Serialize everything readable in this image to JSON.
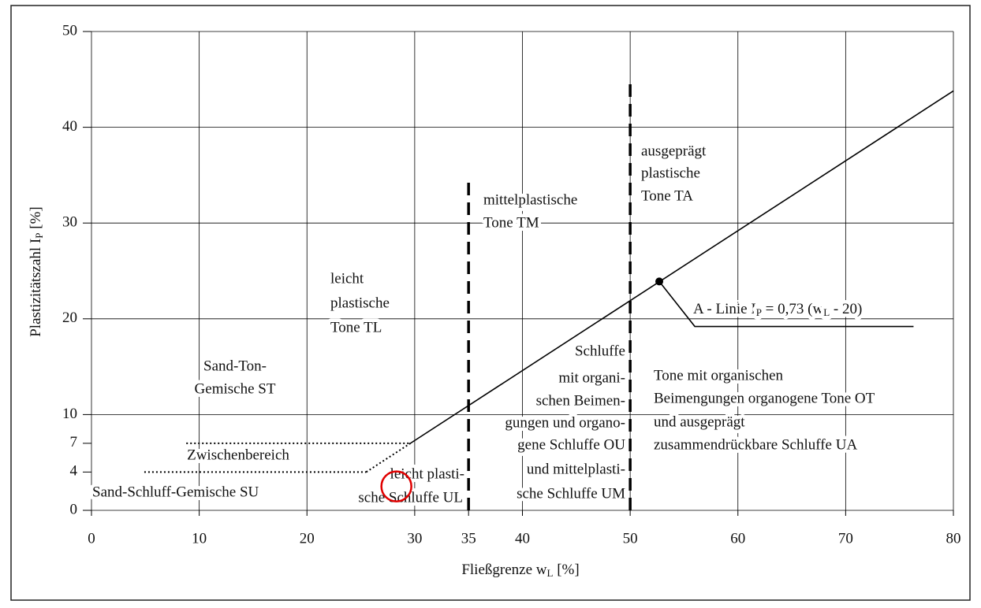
{
  "chart_data": {
    "type": "line",
    "xlabel": [
      "Fließgrenze w",
      "L",
      " [%]"
    ],
    "ylabel": [
      "Plastizitätszahl I",
      "P",
      " [%]"
    ],
    "xlim": [
      0,
      80
    ],
    "ylim": [
      0,
      50
    ],
    "xticks": [
      0,
      10,
      20,
      30,
      35,
      40,
      50,
      60,
      70,
      80
    ],
    "yticks": [
      0,
      4,
      7,
      10,
      20,
      30,
      40,
      50
    ],
    "xgrid": [
      0,
      10,
      20,
      30,
      40,
      50,
      60,
      70,
      80
    ],
    "ygrid": [
      0,
      10,
      20,
      30,
      40,
      50
    ],
    "grid_color": "#000000",
    "series": [
      {
        "x": [
          29.6,
          80
        ],
        "values": [
          7,
          43.8
        ],
        "color": "#000000",
        "style": "solid"
      },
      {
        "x": [
          25.5,
          29.6
        ],
        "values": [
          4,
          7
        ],
        "color": "#000000",
        "style": "dotted"
      },
      {
        "x": [
          8.8,
          29.6
        ],
        "values": [
          7,
          7
        ],
        "color": "#000000",
        "style": "dotted"
      },
      {
        "x": [
          4.9,
          25.5
        ],
        "values": [
          4,
          4
        ],
        "color": "#000000",
        "style": "dotted"
      },
      {
        "x": [
          35,
          35
        ],
        "values": [
          0,
          34.4
        ],
        "color": "#000000",
        "style": "dashed"
      },
      {
        "x": [
          50,
          50
        ],
        "values": [
          0,
          45.2
        ],
        "color": "#000000",
        "style": "dashed"
      },
      {
        "x": [
          52.7,
          56,
          76.3
        ],
        "values": [
          23.9,
          19.2,
          19.2
        ],
        "color": "#000000",
        "style": "solid"
      }
    ],
    "points": [
      {
        "x": 52.7,
        "y": 23.9,
        "color": "#000000"
      }
    ],
    "highlight": {
      "x": 28.3,
      "y": 2.5,
      "color": "#e00000"
    },
    "a_line_label": [
      "A - Linie I",
      "P",
      " = 0,73 (w",
      "L",
      " - 20)"
    ],
    "annotations": [
      [
        "leicht",
        "plastische",
        "Tone TL"
      ],
      [
        "mittelplastische",
        "Tone TM"
      ],
      [
        "ausgeprägt",
        "plastische",
        "Tone TA"
      ],
      [
        "Sand-Ton-",
        "Gemische ST"
      ],
      [
        "Schluffe",
        "mit organi-",
        "schen Beimen-",
        "gungen und organo-",
        "gene Schluffe OU",
        "und mittelplasti-",
        "sche Schluffe UM"
      ],
      [
        "Tone mit organischen",
        "Beimengungen organogene Tone OT",
        "und ausgeprägt",
        "zusammendrückbare Schluffe UA"
      ],
      [
        "Zwischenbereich"
      ],
      [
        "Sand-Schluff-Gemische SU"
      ],
      [
        "leicht plasti-",
        "sche Schluffe UL"
      ]
    ]
  }
}
